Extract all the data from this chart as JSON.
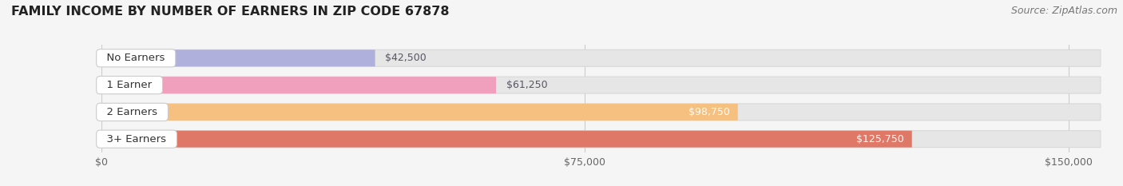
{
  "title": "FAMILY INCOME BY NUMBER OF EARNERS IN ZIP CODE 67878",
  "source": "Source: ZipAtlas.com",
  "categories": [
    "No Earners",
    "1 Earner",
    "2 Earners",
    "3+ Earners"
  ],
  "values": [
    42500,
    61250,
    98750,
    125750
  ],
  "bar_colors": [
    "#b0b0dc",
    "#f0a0bc",
    "#f5c080",
    "#e07868"
  ],
  "label_inside_colors": [
    "#666677",
    "#666677",
    "#ffffff",
    "#ffffff"
  ],
  "label_outside": [
    true,
    true,
    false,
    false
  ],
  "x_ticks": [
    0,
    75000,
    150000
  ],
  "x_tick_labels": [
    "$0",
    "$75,000",
    "$150,000"
  ],
  "xlim_max": 155000,
  "bar_height": 0.62,
  "fig_bg": "#f5f5f5",
  "plot_bg": "#f5f5f5",
  "bar_bg_color": "#e8e8e8",
  "title_fontsize": 11.5,
  "source_fontsize": 9,
  "label_fontsize": 9,
  "category_fontsize": 9.5,
  "tick_fontsize": 9
}
